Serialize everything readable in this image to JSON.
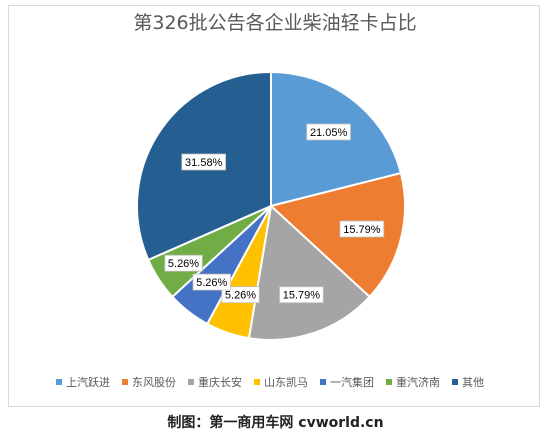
{
  "chart_data": {
    "type": "pie",
    "title": "第326批公告各企业柴油轻卡占比",
    "slices": [
      {
        "name": "上汽跃进",
        "value": 21.05,
        "label": "21.05%",
        "color": "#5B9BD5"
      },
      {
        "name": "东风股份",
        "value": 15.79,
        "label": "15.79%",
        "color": "#ED7D31"
      },
      {
        "name": "重庆长安",
        "value": 15.79,
        "label": "15.79%",
        "color": "#A5A5A5"
      },
      {
        "name": "山东凯马",
        "value": 5.26,
        "label": "5.26%",
        "color": "#FFC000"
      },
      {
        "name": "一汽集团",
        "value": 5.26,
        "label": "5.26%",
        "color": "#4472C4"
      },
      {
        "name": "重汽济南",
        "value": 5.26,
        "label": "5.26%",
        "color": "#70AD47"
      },
      {
        "name": "其他",
        "value": 31.58,
        "label": "31.58%",
        "color": "#255E91"
      }
    ],
    "legend_position": "bottom"
  },
  "credit": "制图：第一商用车网 cvworld.cn"
}
